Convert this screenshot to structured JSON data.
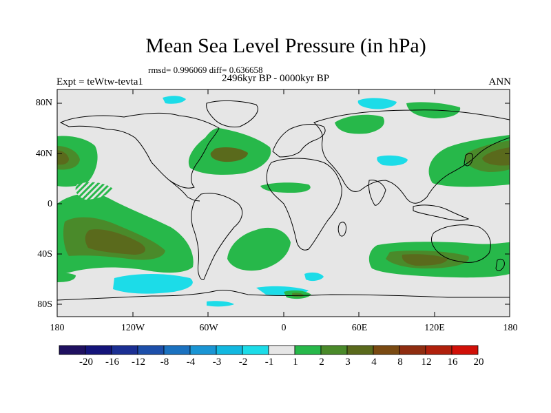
{
  "header": {
    "title": "Mean Sea Level Pressure (in hPa)",
    "stats": "rmsd= 0.996069 diff= 0.636658",
    "period": "2496kyr BP - 0000kyr BP",
    "experiment": "Expt = teWtw-tevta1",
    "season": "ANN"
  },
  "map": {
    "latitude_ticks": [
      "80N",
      "40N",
      "0",
      "40S",
      "80S"
    ],
    "longitude_ticks": [
      "180",
      "120W",
      "60W",
      "0",
      "60E",
      "120E",
      "180"
    ]
  },
  "colorbar": {
    "labels": [
      "-20",
      "-16",
      "-12",
      "-8",
      "-4",
      "-3",
      "-2",
      "-1",
      "1",
      "2",
      "3",
      "4",
      "8",
      "12",
      "16",
      "20"
    ],
    "colors": [
      "#1f1060",
      "#14147a",
      "#1b2f93",
      "#1d4faa",
      "#1b72c0",
      "#1a95d4",
      "#12b8e0",
      "#1cdce8",
      "#e6e6e6",
      "#27b84a",
      "#4a8a2a",
      "#5a6a1c",
      "#7a4a12",
      "#8f2d10",
      "#b0200c",
      "#d11008"
    ]
  },
  "colors": {
    "land_outline": "#000000",
    "neutral": "#e6e6e6",
    "green_light": "#27b84a",
    "green_mid": "#4a8a2a",
    "olive": "#5a6a1c",
    "cyan": "#1cdce8",
    "blue_light": "#12b8e0"
  }
}
